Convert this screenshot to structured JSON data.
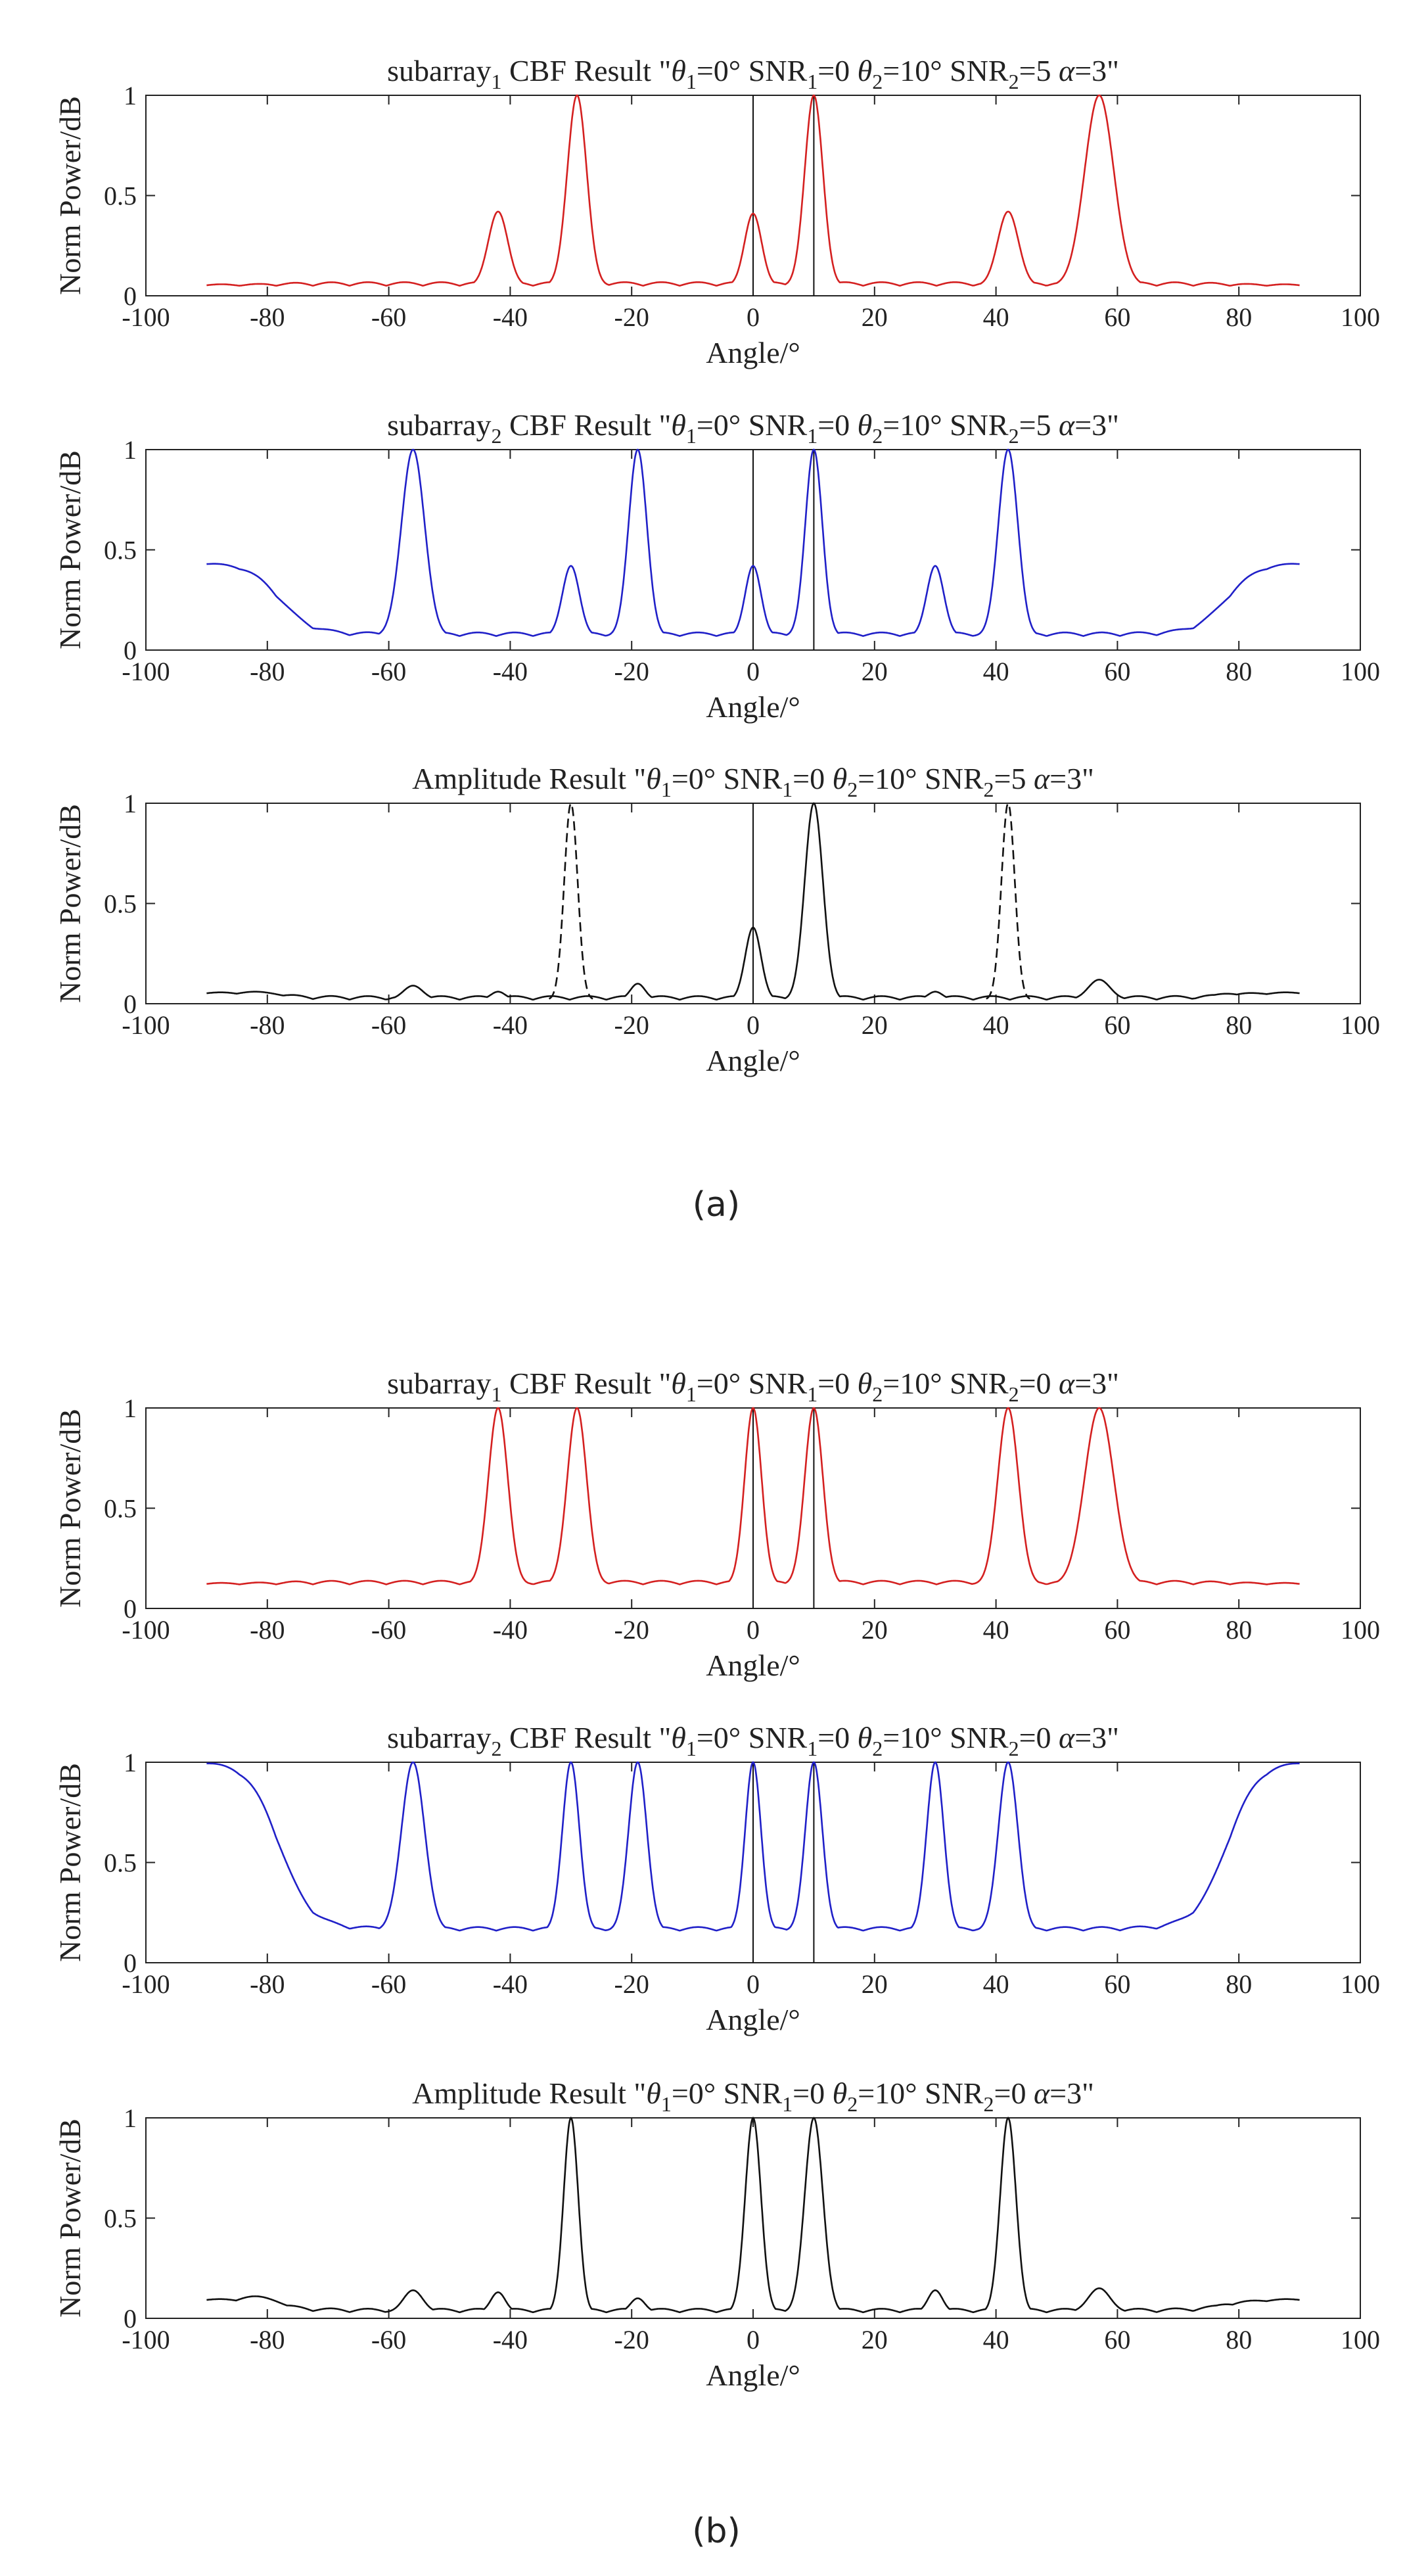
{
  "figure": {
    "caption_a": "(a)",
    "caption_b": "(b)"
  },
  "chart_data": [
    {
      "type": "line",
      "title": "subarray₁ CBF Result \"θ₁=0° SNR₁=0  θ₂=10° SNR₂=5  α=3\"",
      "xlabel": "Angle/°",
      "ylabel": "Norm Power/dB",
      "xlim": [
        -100,
        100
      ],
      "ylim": [
        0,
        1
      ],
      "xticks": [
        -100,
        -80,
        -60,
        -40,
        -20,
        0,
        20,
        40,
        60,
        80,
        100
      ],
      "yticks": [
        0,
        0.5,
        1
      ],
      "color": "#d42020",
      "baseline": 0.05,
      "edge": {
        "left": 0.05,
        "right": 0.05
      },
      "peaks": [
        {
          "x": -42,
          "y": 0.42,
          "w": 1.6,
          "dashed": false
        },
        {
          "x": -29,
          "y": 1.0,
          "w": 1.6,
          "dashed": false
        },
        {
          "x": 0,
          "y": 0.41,
          "w": 1.4,
          "dashed": false
        },
        {
          "x": 10,
          "y": 1.0,
          "w": 1.5,
          "dashed": false
        },
        {
          "x": 42,
          "y": 0.42,
          "w": 1.7,
          "dashed": false
        },
        {
          "x": 57,
          "y": 1.0,
          "w": 2.4,
          "dashed": false
        }
      ],
      "markers": [
        0,
        10
      ]
    },
    {
      "type": "line",
      "title": "subarray₂ CBF Result \"θ₁=0° SNR₁=0  θ₂=10° SNR₂=5  α=3\"",
      "xlabel": "Angle/°",
      "ylabel": "Norm Power/dB",
      "xlim": [
        -100,
        100
      ],
      "ylim": [
        0,
        1
      ],
      "xticks": [
        -100,
        -80,
        -60,
        -40,
        -20,
        0,
        20,
        40,
        60,
        80,
        100
      ],
      "yticks": [
        0,
        0.5,
        1
      ],
      "color": "#2020c8",
      "baseline": 0.07,
      "edge": {
        "left": 0.43,
        "right": 0.43
      },
      "peaks": [
        {
          "x": -56,
          "y": 1.0,
          "w": 1.9,
          "dashed": false
        },
        {
          "x": -30,
          "y": 0.42,
          "w": 1.4,
          "dashed": false
        },
        {
          "x": -19,
          "y": 1.0,
          "w": 1.5,
          "dashed": false
        },
        {
          "x": 0,
          "y": 0.42,
          "w": 1.3,
          "dashed": false
        },
        {
          "x": 10,
          "y": 1.0,
          "w": 1.4,
          "dashed": false
        },
        {
          "x": 30,
          "y": 0.42,
          "w": 1.4,
          "dashed": false
        },
        {
          "x": 42,
          "y": 1.0,
          "w": 1.6,
          "dashed": false
        }
      ],
      "markers": [
        0,
        10
      ]
    },
    {
      "type": "line",
      "title": "Amplitude Result \"θ₁=0° SNR₁=0  θ₂=10° SNR₂=5  α=3\"",
      "xlabel": "Angle/°",
      "ylabel": "Norm Power/dB",
      "xlim": [
        -100,
        100
      ],
      "ylim": [
        0,
        1
      ],
      "xticks": [
        -100,
        -80,
        -60,
        -40,
        -20,
        0,
        20,
        40,
        60,
        80,
        100
      ],
      "yticks": [
        0,
        0.5,
        1
      ],
      "color": "#111111",
      "baseline": 0.02,
      "edge": {
        "left": 0.05,
        "right": 0.05
      },
      "peaks": [
        {
          "x": -82,
          "y": 0.06,
          "w": 4.0,
          "dashed": false
        },
        {
          "x": -56,
          "y": 0.09,
          "w": 1.6,
          "dashed": false
        },
        {
          "x": -42,
          "y": 0.06,
          "w": 1.2,
          "dashed": false
        },
        {
          "x": -30,
          "y": 1.0,
          "w": 1.1,
          "dashed": true
        },
        {
          "x": -19,
          "y": 0.1,
          "w": 1.2,
          "dashed": false
        },
        {
          "x": 0,
          "y": 0.38,
          "w": 1.3,
          "dashed": false
        },
        {
          "x": 10,
          "y": 1.0,
          "w": 1.5,
          "dashed": false
        },
        {
          "x": 30,
          "y": 0.06,
          "w": 1.2,
          "dashed": false
        },
        {
          "x": 42,
          "y": 1.0,
          "w": 1.1,
          "dashed": true
        },
        {
          "x": 57,
          "y": 0.12,
          "w": 1.8,
          "dashed": false
        },
        {
          "x": 78,
          "y": 0.05,
          "w": 3.0,
          "dashed": false
        }
      ],
      "markers": [
        0
      ]
    },
    {
      "type": "line",
      "title": "subarray₁ CBF Result \"θ₁=0° SNR₁=0  θ₂=10° SNR₂=0  α=3\"",
      "xlabel": "Angle/°",
      "ylabel": "Norm Power/dB",
      "xlim": [
        -100,
        100
      ],
      "ylim": [
        0,
        1
      ],
      "xticks": [
        -100,
        -80,
        -60,
        -40,
        -20,
        0,
        20,
        40,
        60,
        80,
        100
      ],
      "yticks": [
        0,
        0.5,
        1
      ],
      "color": "#d42020",
      "baseline": 0.12,
      "edge": {
        "left": 0.12,
        "right": 0.12
      },
      "peaks": [
        {
          "x": -42,
          "y": 1.0,
          "w": 1.6,
          "dashed": false
        },
        {
          "x": -29,
          "y": 1.0,
          "w": 1.6,
          "dashed": false
        },
        {
          "x": 0,
          "y": 1.0,
          "w": 1.4,
          "dashed": false
        },
        {
          "x": 10,
          "y": 1.0,
          "w": 1.5,
          "dashed": false
        },
        {
          "x": 42,
          "y": 1.0,
          "w": 1.7,
          "dashed": false
        },
        {
          "x": 57,
          "y": 1.0,
          "w": 2.4,
          "dashed": false
        }
      ],
      "markers": [
        0,
        10
      ]
    },
    {
      "type": "line",
      "title": "subarray₂ CBF Result \"θ₁=0° SNR₁=0  θ₂=10° SNR₂=0  α=3\"",
      "xlabel": "Angle/°",
      "ylabel": "Norm Power/dB",
      "xlim": [
        -100,
        100
      ],
      "ylim": [
        0,
        1
      ],
      "xticks": [
        -100,
        -80,
        -60,
        -40,
        -20,
        0,
        20,
        40,
        60,
        80,
        100
      ],
      "yticks": [
        0,
        0.5,
        1
      ],
      "color": "#2020c8",
      "baseline": 0.16,
      "edge": {
        "left": 1.0,
        "right": 1.0
      },
      "peaks": [
        {
          "x": -56,
          "y": 1.0,
          "w": 1.9,
          "dashed": false
        },
        {
          "x": -30,
          "y": 1.0,
          "w": 1.4,
          "dashed": false
        },
        {
          "x": -19,
          "y": 1.0,
          "w": 1.5,
          "dashed": false
        },
        {
          "x": 0,
          "y": 1.0,
          "w": 1.3,
          "dashed": false
        },
        {
          "x": 10,
          "y": 1.0,
          "w": 1.4,
          "dashed": false
        },
        {
          "x": 30,
          "y": 1.0,
          "w": 1.4,
          "dashed": false
        },
        {
          "x": 42,
          "y": 1.0,
          "w": 1.6,
          "dashed": false
        }
      ],
      "markers": [
        0,
        10
      ]
    },
    {
      "type": "line",
      "title": "Amplitude Result \"θ₁=0° SNR₁=0  θ₂=10° SNR₂=0  α=3\"",
      "xlabel": "Angle/°",
      "ylabel": "Norm Power/dB",
      "xlim": [
        -100,
        100
      ],
      "ylim": [
        0,
        1
      ],
      "xticks": [
        -100,
        -80,
        -60,
        -40,
        -20,
        0,
        20,
        40,
        60,
        80,
        100
      ],
      "yticks": [
        0,
        0.5,
        1
      ],
      "color": "#111111",
      "baseline": 0.03,
      "edge": {
        "left": 0.09,
        "right": 0.09
      },
      "peaks": [
        {
          "x": -82,
          "y": 0.11,
          "w": 4.0,
          "dashed": false
        },
        {
          "x": -56,
          "y": 0.14,
          "w": 1.6,
          "dashed": false
        },
        {
          "x": -42,
          "y": 0.13,
          "w": 1.2,
          "dashed": false
        },
        {
          "x": -30,
          "y": 1.0,
          "w": 1.2,
          "dashed": false
        },
        {
          "x": -19,
          "y": 0.1,
          "w": 1.2,
          "dashed": false
        },
        {
          "x": 0,
          "y": 1.0,
          "w": 1.3,
          "dashed": false
        },
        {
          "x": 10,
          "y": 1.0,
          "w": 1.5,
          "dashed": false
        },
        {
          "x": 30,
          "y": 0.14,
          "w": 1.2,
          "dashed": false
        },
        {
          "x": 42,
          "y": 1.0,
          "w": 1.3,
          "dashed": false
        },
        {
          "x": 57,
          "y": 0.15,
          "w": 1.8,
          "dashed": false
        },
        {
          "x": 78,
          "y": 0.07,
          "w": 3.0,
          "dashed": false
        }
      ],
      "markers": []
    }
  ]
}
